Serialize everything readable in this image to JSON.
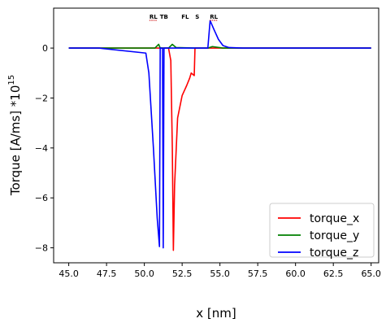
{
  "chart_data": {
    "type": "line",
    "title": "",
    "xlabel": "x [nm]",
    "ylabel_base": "Torque [A/ms] *10",
    "ylabel_exp": "15",
    "xlim": [
      44.0,
      65.5
    ],
    "ylim": [
      -8.6,
      1.6
    ],
    "xticks": [
      45.0,
      47.5,
      50.0,
      52.5,
      55.0,
      57.5,
      60.0,
      62.5,
      65.0
    ],
    "xtick_labels": [
      "45.0",
      "47.5",
      "50.0",
      "52.5",
      "55.0",
      "57.5",
      "60.0",
      "62.5",
      "65.0"
    ],
    "yticks": [
      0,
      -2,
      -4,
      -6,
      -8
    ],
    "ytick_labels": [
      "0",
      "−2",
      "−4",
      "−6",
      "−8"
    ],
    "grid": false,
    "legend_position": "bottom-right",
    "annotations": [
      {
        "text": "RL",
        "x": 50.6,
        "underline": true
      },
      {
        "text": "TB",
        "x": 51.3,
        "underline": false
      },
      {
        "text": "FL",
        "x": 52.7,
        "underline": false
      },
      {
        "text": "S",
        "x": 53.5,
        "underline": false
      },
      {
        "text": "RL",
        "x": 54.6,
        "underline": true
      }
    ],
    "series": [
      {
        "name": "torque_x",
        "color": "#ff0000",
        "points": [
          [
            45.0,
            0
          ],
          [
            51.6,
            0
          ],
          [
            51.75,
            -0.5
          ],
          [
            51.85,
            -4.0
          ],
          [
            51.92,
            -8.1
          ],
          [
            52.0,
            -5.5
          ],
          [
            52.2,
            -2.8
          ],
          [
            52.5,
            -1.9
          ],
          [
            52.8,
            -1.5
          ],
          [
            53.0,
            -1.2
          ],
          [
            53.1,
            -1.0
          ],
          [
            53.3,
            -1.1
          ],
          [
            53.35,
            0.0
          ],
          [
            65.0,
            0
          ]
        ]
      },
      {
        "name": "torque_y",
        "color": "#008000",
        "points": [
          [
            45.0,
            0
          ],
          [
            50.7,
            0
          ],
          [
            50.95,
            0.15
          ],
          [
            51.05,
            0.0
          ],
          [
            51.6,
            0
          ],
          [
            51.85,
            0.15
          ],
          [
            52.1,
            0.02
          ],
          [
            53.4,
            0
          ],
          [
            54.2,
            0
          ],
          [
            54.5,
            0.06
          ],
          [
            55.2,
            0
          ],
          [
            65.0,
            0
          ]
        ]
      },
      {
        "name": "torque_z",
        "color": "#0000ff",
        "points": [
          [
            45.0,
            0
          ],
          [
            47.0,
            0
          ],
          [
            50.1,
            -0.2
          ],
          [
            50.3,
            -1.0
          ],
          [
            50.6,
            -4.0
          ],
          [
            50.85,
            -6.8
          ],
          [
            51.0,
            -7.95
          ],
          [
            51.05,
            0.0
          ],
          [
            51.2,
            0.0
          ],
          [
            51.25,
            -8.0
          ],
          [
            51.3,
            0.0
          ],
          [
            54.2,
            0.0
          ],
          [
            54.35,
            1.1
          ],
          [
            54.6,
            0.75
          ],
          [
            54.9,
            0.35
          ],
          [
            55.2,
            0.1
          ],
          [
            55.6,
            0.02
          ],
          [
            56.5,
            0
          ],
          [
            65.0,
            0
          ]
        ]
      }
    ]
  }
}
